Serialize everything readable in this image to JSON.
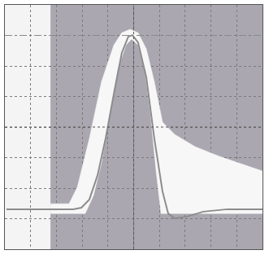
{
  "chart_data": {
    "type": "line",
    "xlim": [
      -5,
      5
    ],
    "ylim": [
      -4,
      4
    ],
    "xticks": [
      -5,
      -4,
      -3,
      -2,
      -1,
      0,
      1,
      2,
      3,
      4,
      5
    ],
    "yticks": [
      -4,
      -3,
      -2,
      -1,
      0,
      1,
      2,
      3,
      4
    ],
    "grid": true,
    "tick_labels": false,
    "mask_start": -3.23,
    "mask_color": "#aaa7b0",
    "reference_lines": [
      {
        "value": 3,
        "line_style": "dash",
        "color": "#8a8a8a"
      }
    ],
    "series": [
      {
        "type": "mask_upper",
        "color": "#f7f7f7",
        "x": [
          -3.23,
          -2.51,
          -2.19,
          -1.72,
          -1.25,
          -0.77,
          -0.46,
          -0.14,
          0.17,
          0.49,
          0.8,
          1.12,
          1.59,
          2.38,
          3.33,
          4.27,
          5.0
        ],
        "values": [
          -2.51,
          -2.51,
          -1.97,
          -0.37,
          1.49,
          2.69,
          3.09,
          3.2,
          3.09,
          2.56,
          1.49,
          0.16,
          -0.24,
          -0.64,
          -0.96,
          -1.23,
          -1.44
        ]
      },
      {
        "type": "mask_lower",
        "color": "#f7f7f7",
        "x": [
          -3.23,
          -1.88,
          -1.56,
          -1.25,
          -0.93,
          -0.62,
          -0.3,
          -0.08,
          0.17,
          0.43,
          0.65,
          0.87,
          1.06,
          5.0
        ],
        "values": [
          -2.83,
          -2.83,
          -2.24,
          -1.17,
          0.43,
          1.89,
          2.69,
          2.88,
          2.69,
          1.89,
          0.43,
          -1.44,
          -2.83,
          -2.83
        ]
      },
      {
        "type": "line",
        "color": "#8c8c8c",
        "line_style": "solid",
        "x": [
          -4.94,
          -2.35,
          -2.03,
          -1.72,
          -1.4,
          -1.09,
          -0.77,
          -0.46,
          -0.21,
          -0.05,
          0.17,
          0.49,
          0.8,
          1.12,
          1.34,
          1.59,
          2.07,
          2.7,
          3.64,
          5.0
        ],
        "values": [
          -2.69,
          -2.69,
          -2.64,
          -2.37,
          -1.57,
          -0.37,
          1.09,
          2.43,
          2.96,
          3.01,
          2.77,
          1.63,
          -0.37,
          -2.11,
          -2.83,
          -2.99,
          -2.93,
          -2.77,
          -2.69,
          -2.69
        ]
      }
    ]
  }
}
